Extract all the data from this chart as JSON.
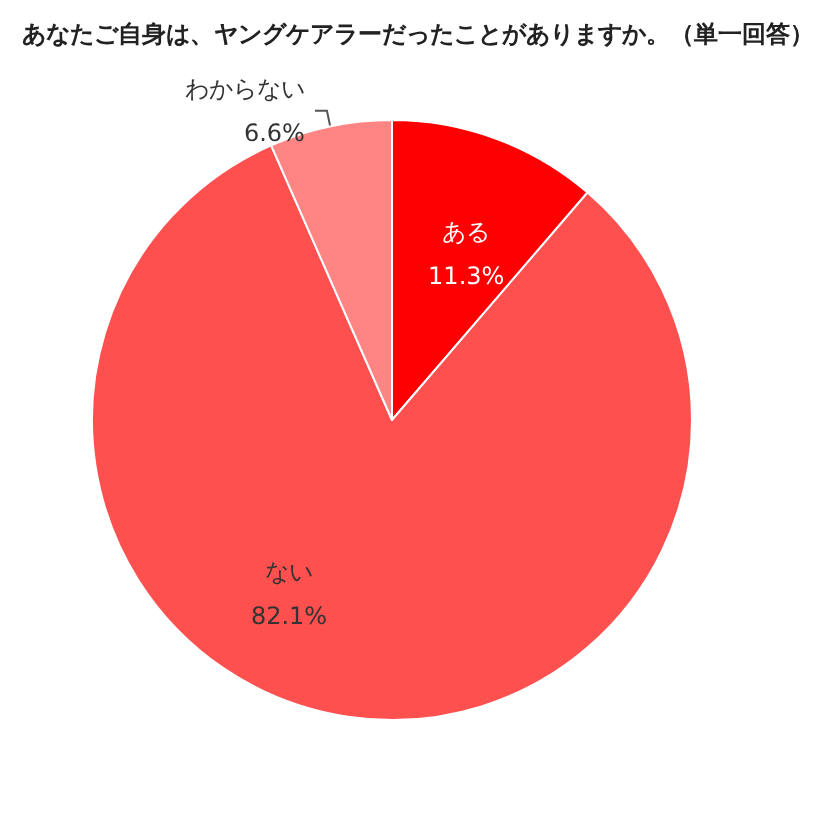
{
  "chart_data": {
    "type": "pie",
    "title": "あなたご自身は、ヤングケアラーだったことがありますか。（単一回答）",
    "categories": [
      "ある",
      "ない",
      "わからない"
    ],
    "values": [
      11.3,
      82.1,
      6.6
    ],
    "value_labels": [
      "11.3%",
      "82.1%",
      "6.6%"
    ],
    "colors": [
      "#ff0000",
      "#ff5050",
      "#ff8585"
    ],
    "legend": false
  }
}
